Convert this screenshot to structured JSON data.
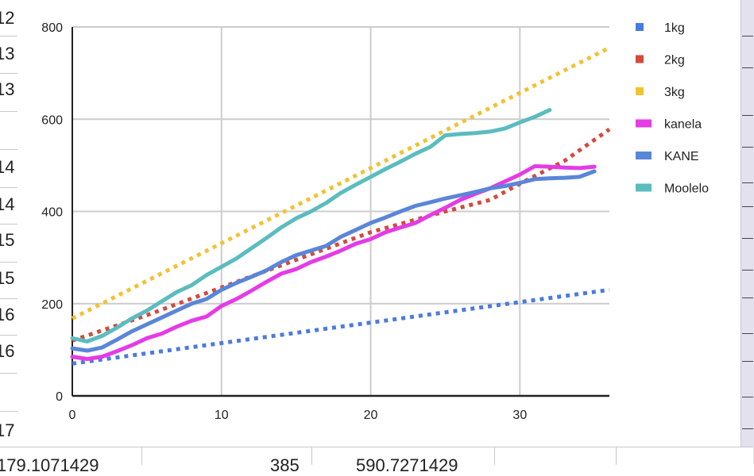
{
  "sheet": {
    "left_row_numbers": [
      "12",
      "13",
      "13",
      "14",
      "14",
      "15",
      "15",
      "16",
      "16",
      "17"
    ],
    "bottom_cells": [
      "179.1071429",
      "385",
      "590.7271429"
    ]
  },
  "chart_data": {
    "type": "line",
    "title": "",
    "xlabel": "",
    "ylabel": "",
    "xlim": [
      0,
      36
    ],
    "ylim": [
      0,
      800
    ],
    "x_ticks": [
      "0",
      "10",
      "20",
      "30"
    ],
    "y_ticks": [
      "0",
      "200",
      "400",
      "600",
      "800"
    ],
    "grid": true,
    "legend_position": "right",
    "series": [
      {
        "name": "1kg",
        "color": "#4a7be0",
        "style": "dotted",
        "x": [
          0,
          36
        ],
        "y": [
          70,
          230
        ]
      },
      {
        "name": "2kg",
        "color": "#d44a3c",
        "style": "dotted",
        "x": [
          0,
          5,
          10,
          15,
          20,
          25,
          28,
          30,
          33,
          36
        ],
        "y": [
          120,
          175,
          235,
          295,
          355,
          400,
          425,
          460,
          510,
          578
        ]
      },
      {
        "name": "3kg",
        "color": "#f2c233",
        "style": "dotted",
        "x": [
          0,
          36
        ],
        "y": [
          168,
          755
        ]
      },
      {
        "name": "kanela",
        "color": "#e53be6",
        "style": "solid",
        "x": [
          0,
          1,
          2,
          3,
          4,
          5,
          6,
          7,
          8,
          9,
          10,
          11,
          12,
          13,
          14,
          15,
          16,
          17,
          18,
          19,
          20,
          21,
          22,
          23,
          24,
          25,
          26,
          27,
          28,
          29,
          30,
          31,
          32,
          33,
          34,
          35
        ],
        "y": [
          85,
          80,
          85,
          97,
          110,
          125,
          135,
          150,
          163,
          172,
          195,
          210,
          228,
          247,
          265,
          275,
          290,
          302,
          315,
          330,
          340,
          355,
          365,
          375,
          392,
          408,
          425,
          438,
          450,
          465,
          480,
          498,
          497,
          495,
          494,
          497
        ]
      },
      {
        "name": "KANE",
        "color": "#5a86d8",
        "style": "solid",
        "x": [
          0,
          1,
          2,
          3,
          4,
          5,
          6,
          7,
          8,
          9,
          10,
          11,
          12,
          13,
          14,
          15,
          16,
          17,
          18,
          19,
          20,
          21,
          22,
          23,
          24,
          25,
          26,
          27,
          28,
          29,
          30,
          31,
          32,
          33,
          34,
          35
        ],
        "y": [
          103,
          98,
          105,
          122,
          140,
          155,
          170,
          185,
          200,
          210,
          230,
          245,
          258,
          272,
          290,
          305,
          315,
          325,
          345,
          360,
          375,
          387,
          400,
          412,
          420,
          428,
          435,
          442,
          450,
          455,
          462,
          470,
          472,
          473,
          475,
          487
        ]
      },
      {
        "name": "Moolelo",
        "color": "#5bbcbe",
        "style": "solid",
        "x": [
          0,
          1,
          2,
          3,
          4,
          5,
          6,
          7,
          8,
          9,
          10,
          11,
          12,
          13,
          14,
          15,
          16,
          17,
          18,
          19,
          20,
          21,
          22,
          23,
          24,
          25,
          26,
          27,
          28,
          29,
          30,
          31,
          32
        ],
        "y": [
          125,
          118,
          130,
          148,
          168,
          185,
          205,
          225,
          240,
          262,
          280,
          298,
          320,
          342,
          365,
          385,
          400,
          418,
          440,
          458,
          475,
          492,
          508,
          525,
          540,
          565,
          568,
          570,
          573,
          580,
          593,
          605,
          620
        ]
      }
    ]
  }
}
